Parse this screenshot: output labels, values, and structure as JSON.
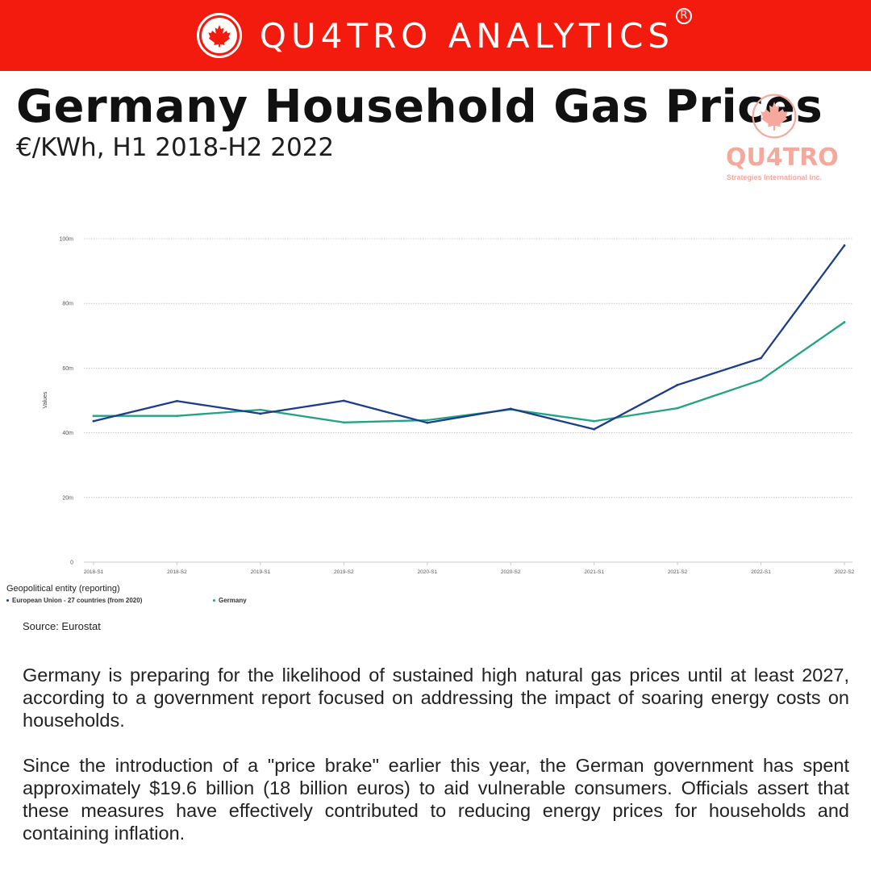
{
  "banner": {
    "brand": "QU4TRO ANALYTICS",
    "registered": "R",
    "icon": "maple-leaf-icon",
    "color": "#f21b0e"
  },
  "title": "Germany Household Gas Prices",
  "subtitle": "€/KWh, H1 2018-H2 2022",
  "logo": {
    "word": "QU4TRO",
    "tagline": "Strategies International Inc.",
    "icon": "maple-leaf-icon",
    "color": "#f5a99d"
  },
  "chart_data": {
    "type": "line",
    "title": "",
    "xlabel": "",
    "ylabel": "Values",
    "ylim": [
      0,
      100
    ],
    "y_ticks": [
      0,
      20,
      40,
      60,
      80,
      100
    ],
    "y_tick_labels": [
      "0",
      "20m",
      "40m",
      "60m",
      "80m",
      "100m"
    ],
    "categories": [
      "2018-S1",
      "2018-S2",
      "2019-S1",
      "2019-S2",
      "2020-S1",
      "2020-S2",
      "2021-S1",
      "2021-S2",
      "2022-S1",
      "2022-S2"
    ],
    "grid": true,
    "legend_title": "Geopolitical entity (reporting)",
    "legend_position": "bottom-left",
    "series": [
      {
        "name": "European Union - 27 countries (from 2020)",
        "color": "#1b3d8a",
        "values": [
          43.6,
          49.8,
          45.9,
          49.9,
          43.1,
          47.4,
          41.1,
          54.8,
          63.1,
          97.9
        ]
      },
      {
        "name": "Germany",
        "color": "#23a384",
        "values": [
          45.2,
          45.2,
          47.1,
          43.2,
          43.9,
          47.2,
          43.6,
          47.6,
          56.3,
          74.2
        ]
      }
    ]
  },
  "source": "Source: Eurostat",
  "body": {
    "paragraph_1": "Germany is preparing for the likelihood of sustained high natural gas prices until at least 2027, according to a government report focused on addressing the impact of soaring energy costs on households.",
    "paragraph_2": "Since the introduction of a \"price brake\" earlier this year, the German government has spent approximately $19.6 billion (18 billion euros) to aid vulnerable consumers. Officials assert that these measures have effectively contributed to reducing energy prices for households and containing inflation."
  }
}
